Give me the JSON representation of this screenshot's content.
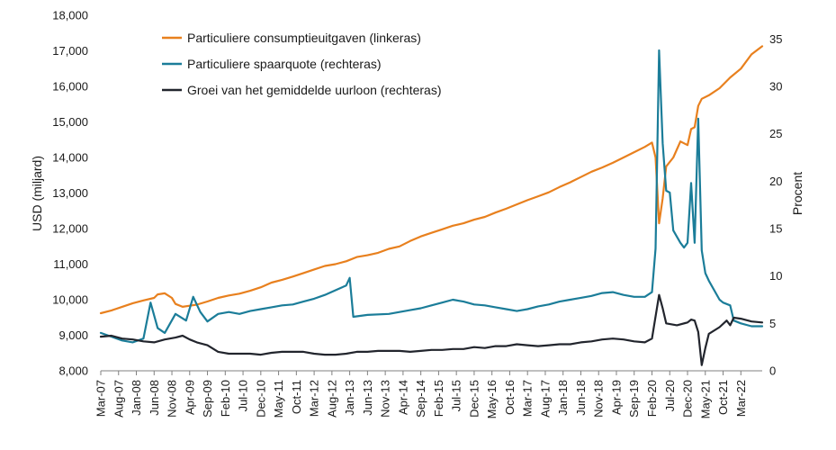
{
  "chart_data": {
    "type": "line",
    "title": "",
    "ylabel_left": "USD (miljard)",
    "ylabel_right": "Procent",
    "ylim_left": [
      8000,
      18000
    ],
    "ylim_right": [
      0,
      37.5
    ],
    "yticks_left": [
      8000,
      9000,
      10000,
      11000,
      12000,
      13000,
      14000,
      15000,
      16000,
      17000,
      18000
    ],
    "ytick_labels_left": [
      "8,000",
      "9,000",
      "10,000",
      "11,000",
      "12,000",
      "13,000",
      "14,000",
      "15,000",
      "16,000",
      "17,000",
      "18,000"
    ],
    "yticks_right": [
      0,
      5,
      10,
      15,
      20,
      25,
      30,
      35
    ],
    "ytick_labels_right": [
      "0",
      "5",
      "10",
      "15",
      "20",
      "25",
      "30",
      "35"
    ],
    "x_start": "2007-03",
    "x_end": "2022-09",
    "x_tick_labels": [
      "Mar-07",
      "Aug-07",
      "Jan-08",
      "Jun-08",
      "Nov-08",
      "Apr-09",
      "Sep-09",
      "Feb-10",
      "Jul-10",
      "Dec-10",
      "May-11",
      "Oct-11",
      "Mar-12",
      "Aug-12",
      "Jan-13",
      "Jun-13",
      "Nov-13",
      "Apr-14",
      "Sep-14",
      "Feb-15",
      "Jul-15",
      "Dec-15",
      "May-16",
      "Oct-16",
      "Mar-17",
      "Aug-17",
      "Jan-18",
      "Jun-18",
      "Nov-18",
      "Apr-19",
      "Sep-19",
      "Feb-20",
      "Jul-20",
      "Dec-20",
      "May-21",
      "Oct-21",
      "Mar-22"
    ],
    "grid": false,
    "legend_position": "top-left",
    "series": [
      {
        "name": "Particuliere consumptieuitgaven (linkeras)",
        "axis": "left",
        "color": "#e8801e",
        "points": [
          [
            "2007-03",
            9620
          ],
          [
            "2007-06",
            9700
          ],
          [
            "2007-09",
            9800
          ],
          [
            "2007-12",
            9900
          ],
          [
            "2008-03",
            9980
          ],
          [
            "2008-06",
            10050
          ],
          [
            "2008-07",
            10150
          ],
          [
            "2008-09",
            10180
          ],
          [
            "2008-11",
            10050
          ],
          [
            "2008-12",
            9880
          ],
          [
            "2009-02",
            9800
          ],
          [
            "2009-04",
            9830
          ],
          [
            "2009-06",
            9860
          ],
          [
            "2009-09",
            9950
          ],
          [
            "2009-12",
            10050
          ],
          [
            "2010-03",
            10120
          ],
          [
            "2010-06",
            10170
          ],
          [
            "2010-09",
            10250
          ],
          [
            "2010-12",
            10350
          ],
          [
            "2011-03",
            10480
          ],
          [
            "2011-06",
            10560
          ],
          [
            "2011-09",
            10650
          ],
          [
            "2011-12",
            10750
          ],
          [
            "2012-03",
            10850
          ],
          [
            "2012-06",
            10950
          ],
          [
            "2012-09",
            11000
          ],
          [
            "2012-12",
            11080
          ],
          [
            "2013-03",
            11200
          ],
          [
            "2013-06",
            11250
          ],
          [
            "2013-09",
            11320
          ],
          [
            "2013-12",
            11430
          ],
          [
            "2014-03",
            11500
          ],
          [
            "2014-06",
            11650
          ],
          [
            "2014-09",
            11780
          ],
          [
            "2014-12",
            11880
          ],
          [
            "2015-03",
            11980
          ],
          [
            "2015-06",
            12080
          ],
          [
            "2015-09",
            12150
          ],
          [
            "2015-12",
            12250
          ],
          [
            "2016-03",
            12330
          ],
          [
            "2016-06",
            12450
          ],
          [
            "2016-09",
            12560
          ],
          [
            "2016-12",
            12680
          ],
          [
            "2017-03",
            12800
          ],
          [
            "2017-06",
            12910
          ],
          [
            "2017-09",
            13020
          ],
          [
            "2017-12",
            13170
          ],
          [
            "2018-03",
            13300
          ],
          [
            "2018-06",
            13450
          ],
          [
            "2018-09",
            13600
          ],
          [
            "2018-12",
            13720
          ],
          [
            "2019-03",
            13850
          ],
          [
            "2019-06",
            14000
          ],
          [
            "2019-09",
            14150
          ],
          [
            "2019-12",
            14300
          ],
          [
            "2020-02",
            14420
          ],
          [
            "2020-03",
            14000
          ],
          [
            "2020-04",
            12150
          ],
          [
            "2020-05",
            12850
          ],
          [
            "2020-06",
            13750
          ],
          [
            "2020-08",
            14000
          ],
          [
            "2020-10",
            14450
          ],
          [
            "2020-12",
            14350
          ],
          [
            "2021-01",
            14800
          ],
          [
            "2021-02",
            14850
          ],
          [
            "2021-03",
            15450
          ],
          [
            "2021-04",
            15650
          ],
          [
            "2021-06",
            15750
          ],
          [
            "2021-09",
            15950
          ],
          [
            "2021-12",
            16250
          ],
          [
            "2022-03",
            16500
          ],
          [
            "2022-06",
            16900
          ],
          [
            "2022-09",
            17130
          ]
        ]
      },
      {
        "name": "Particuliere spaarquote (rechteras)",
        "axis": "right",
        "color": "#1b7d99",
        "points": [
          [
            "2007-03",
            4.0
          ],
          [
            "2007-06",
            3.6
          ],
          [
            "2007-09",
            3.2
          ],
          [
            "2007-12",
            3.0
          ],
          [
            "2008-03",
            3.4
          ],
          [
            "2008-05",
            7.2
          ],
          [
            "2008-07",
            4.5
          ],
          [
            "2008-09",
            4.0
          ],
          [
            "2008-12",
            6.0
          ],
          [
            "2009-03",
            5.3
          ],
          [
            "2009-05",
            7.8
          ],
          [
            "2009-07",
            6.2
          ],
          [
            "2009-09",
            5.2
          ],
          [
            "2009-12",
            6.0
          ],
          [
            "2010-03",
            6.2
          ],
          [
            "2010-06",
            6.0
          ],
          [
            "2010-09",
            6.3
          ],
          [
            "2010-12",
            6.5
          ],
          [
            "2011-03",
            6.7
          ],
          [
            "2011-06",
            6.9
          ],
          [
            "2011-09",
            7.0
          ],
          [
            "2011-12",
            7.3
          ],
          [
            "2012-03",
            7.6
          ],
          [
            "2012-06",
            8.0
          ],
          [
            "2012-09",
            8.5
          ],
          [
            "2012-12",
            9.0
          ],
          [
            "2013-01",
            9.8
          ],
          [
            "2013-02",
            5.7
          ],
          [
            "2013-06",
            5.9
          ],
          [
            "2013-12",
            6.0
          ],
          [
            "2014-03",
            6.2
          ],
          [
            "2014-06",
            6.4
          ],
          [
            "2014-09",
            6.6
          ],
          [
            "2014-12",
            6.9
          ],
          [
            "2015-03",
            7.2
          ],
          [
            "2015-06",
            7.5
          ],
          [
            "2015-09",
            7.3
          ],
          [
            "2015-12",
            7.0
          ],
          [
            "2016-03",
            6.9
          ],
          [
            "2016-06",
            6.7
          ],
          [
            "2016-09",
            6.5
          ],
          [
            "2016-12",
            6.3
          ],
          [
            "2017-03",
            6.5
          ],
          [
            "2017-06",
            6.8
          ],
          [
            "2017-09",
            7.0
          ],
          [
            "2017-12",
            7.3
          ],
          [
            "2018-03",
            7.5
          ],
          [
            "2018-06",
            7.7
          ],
          [
            "2018-09",
            7.9
          ],
          [
            "2018-12",
            8.2
          ],
          [
            "2019-03",
            8.3
          ],
          [
            "2019-06",
            8.0
          ],
          [
            "2019-09",
            7.8
          ],
          [
            "2019-12",
            7.8
          ],
          [
            "2020-02",
            8.3
          ],
          [
            "2020-03",
            12.9
          ],
          [
            "2020-04",
            33.8
          ],
          [
            "2020-05",
            24.0
          ],
          [
            "2020-06",
            19.0
          ],
          [
            "2020-07",
            18.8
          ],
          [
            "2020-08",
            14.8
          ],
          [
            "2020-10",
            13.5
          ],
          [
            "2020-11",
            13.0
          ],
          [
            "2020-12",
            13.5
          ],
          [
            "2021-01",
            19.8
          ],
          [
            "2021-02",
            13.5
          ],
          [
            "2021-03",
            26.6
          ],
          [
            "2021-04",
            12.7
          ],
          [
            "2021-05",
            10.3
          ],
          [
            "2021-06",
            9.5
          ],
          [
            "2021-09",
            7.5
          ],
          [
            "2021-10",
            7.2
          ],
          [
            "2021-12",
            6.9
          ],
          [
            "2022-01",
            5.3
          ],
          [
            "2022-03",
            5.0
          ],
          [
            "2022-06",
            4.7
          ],
          [
            "2022-09",
            4.7
          ]
        ]
      },
      {
        "name": "Groei van het gemiddelde uurloon (rechteras)",
        "axis": "right",
        "color": "#22252d",
        "points": [
          [
            "2007-03",
            3.6
          ],
          [
            "2007-06",
            3.7
          ],
          [
            "2007-09",
            3.4
          ],
          [
            "2007-12",
            3.3
          ],
          [
            "2008-03",
            3.1
          ],
          [
            "2008-06",
            3.0
          ],
          [
            "2008-09",
            3.3
          ],
          [
            "2008-12",
            3.5
          ],
          [
            "2009-02",
            3.7
          ],
          [
            "2009-04",
            3.3
          ],
          [
            "2009-06",
            3.0
          ],
          [
            "2009-09",
            2.7
          ],
          [
            "2009-12",
            2.0
          ],
          [
            "2010-03",
            1.8
          ],
          [
            "2010-06",
            1.8
          ],
          [
            "2010-09",
            1.8
          ],
          [
            "2010-12",
            1.7
          ],
          [
            "2011-03",
            1.9
          ],
          [
            "2011-06",
            2.0
          ],
          [
            "2011-09",
            2.0
          ],
          [
            "2011-12",
            2.0
          ],
          [
            "2012-03",
            1.8
          ],
          [
            "2012-06",
            1.7
          ],
          [
            "2012-09",
            1.7
          ],
          [
            "2012-12",
            1.8
          ],
          [
            "2013-03",
            2.0
          ],
          [
            "2013-06",
            2.0
          ],
          [
            "2013-09",
            2.1
          ],
          [
            "2013-12",
            2.1
          ],
          [
            "2014-03",
            2.1
          ],
          [
            "2014-06",
            2.0
          ],
          [
            "2014-09",
            2.1
          ],
          [
            "2014-12",
            2.2
          ],
          [
            "2015-03",
            2.2
          ],
          [
            "2015-06",
            2.3
          ],
          [
            "2015-09",
            2.3
          ],
          [
            "2015-12",
            2.5
          ],
          [
            "2016-03",
            2.4
          ],
          [
            "2016-06",
            2.6
          ],
          [
            "2016-09",
            2.6
          ],
          [
            "2016-12",
            2.8
          ],
          [
            "2017-03",
            2.7
          ],
          [
            "2017-06",
            2.6
          ],
          [
            "2017-09",
            2.7
          ],
          [
            "2017-12",
            2.8
          ],
          [
            "2018-03",
            2.8
          ],
          [
            "2018-06",
            3.0
          ],
          [
            "2018-09",
            3.1
          ],
          [
            "2018-12",
            3.3
          ],
          [
            "2019-03",
            3.4
          ],
          [
            "2019-06",
            3.3
          ],
          [
            "2019-09",
            3.1
          ],
          [
            "2019-12",
            3.0
          ],
          [
            "2020-02",
            3.4
          ],
          [
            "2020-04",
            8.0
          ],
          [
            "2020-05",
            6.6
          ],
          [
            "2020-06",
            5.0
          ],
          [
            "2020-09",
            4.8
          ],
          [
            "2020-12",
            5.1
          ],
          [
            "2021-01",
            5.4
          ],
          [
            "2021-02",
            5.3
          ],
          [
            "2021-03",
            4.1
          ],
          [
            "2021-04",
            0.6
          ],
          [
            "2021-05",
            2.4
          ],
          [
            "2021-06",
            3.9
          ],
          [
            "2021-09",
            4.6
          ],
          [
            "2021-11",
            5.3
          ],
          [
            "2021-12",
            4.8
          ],
          [
            "2022-01",
            5.6
          ],
          [
            "2022-03",
            5.5
          ],
          [
            "2022-06",
            5.2
          ],
          [
            "2022-09",
            5.1
          ]
        ]
      }
    ]
  }
}
